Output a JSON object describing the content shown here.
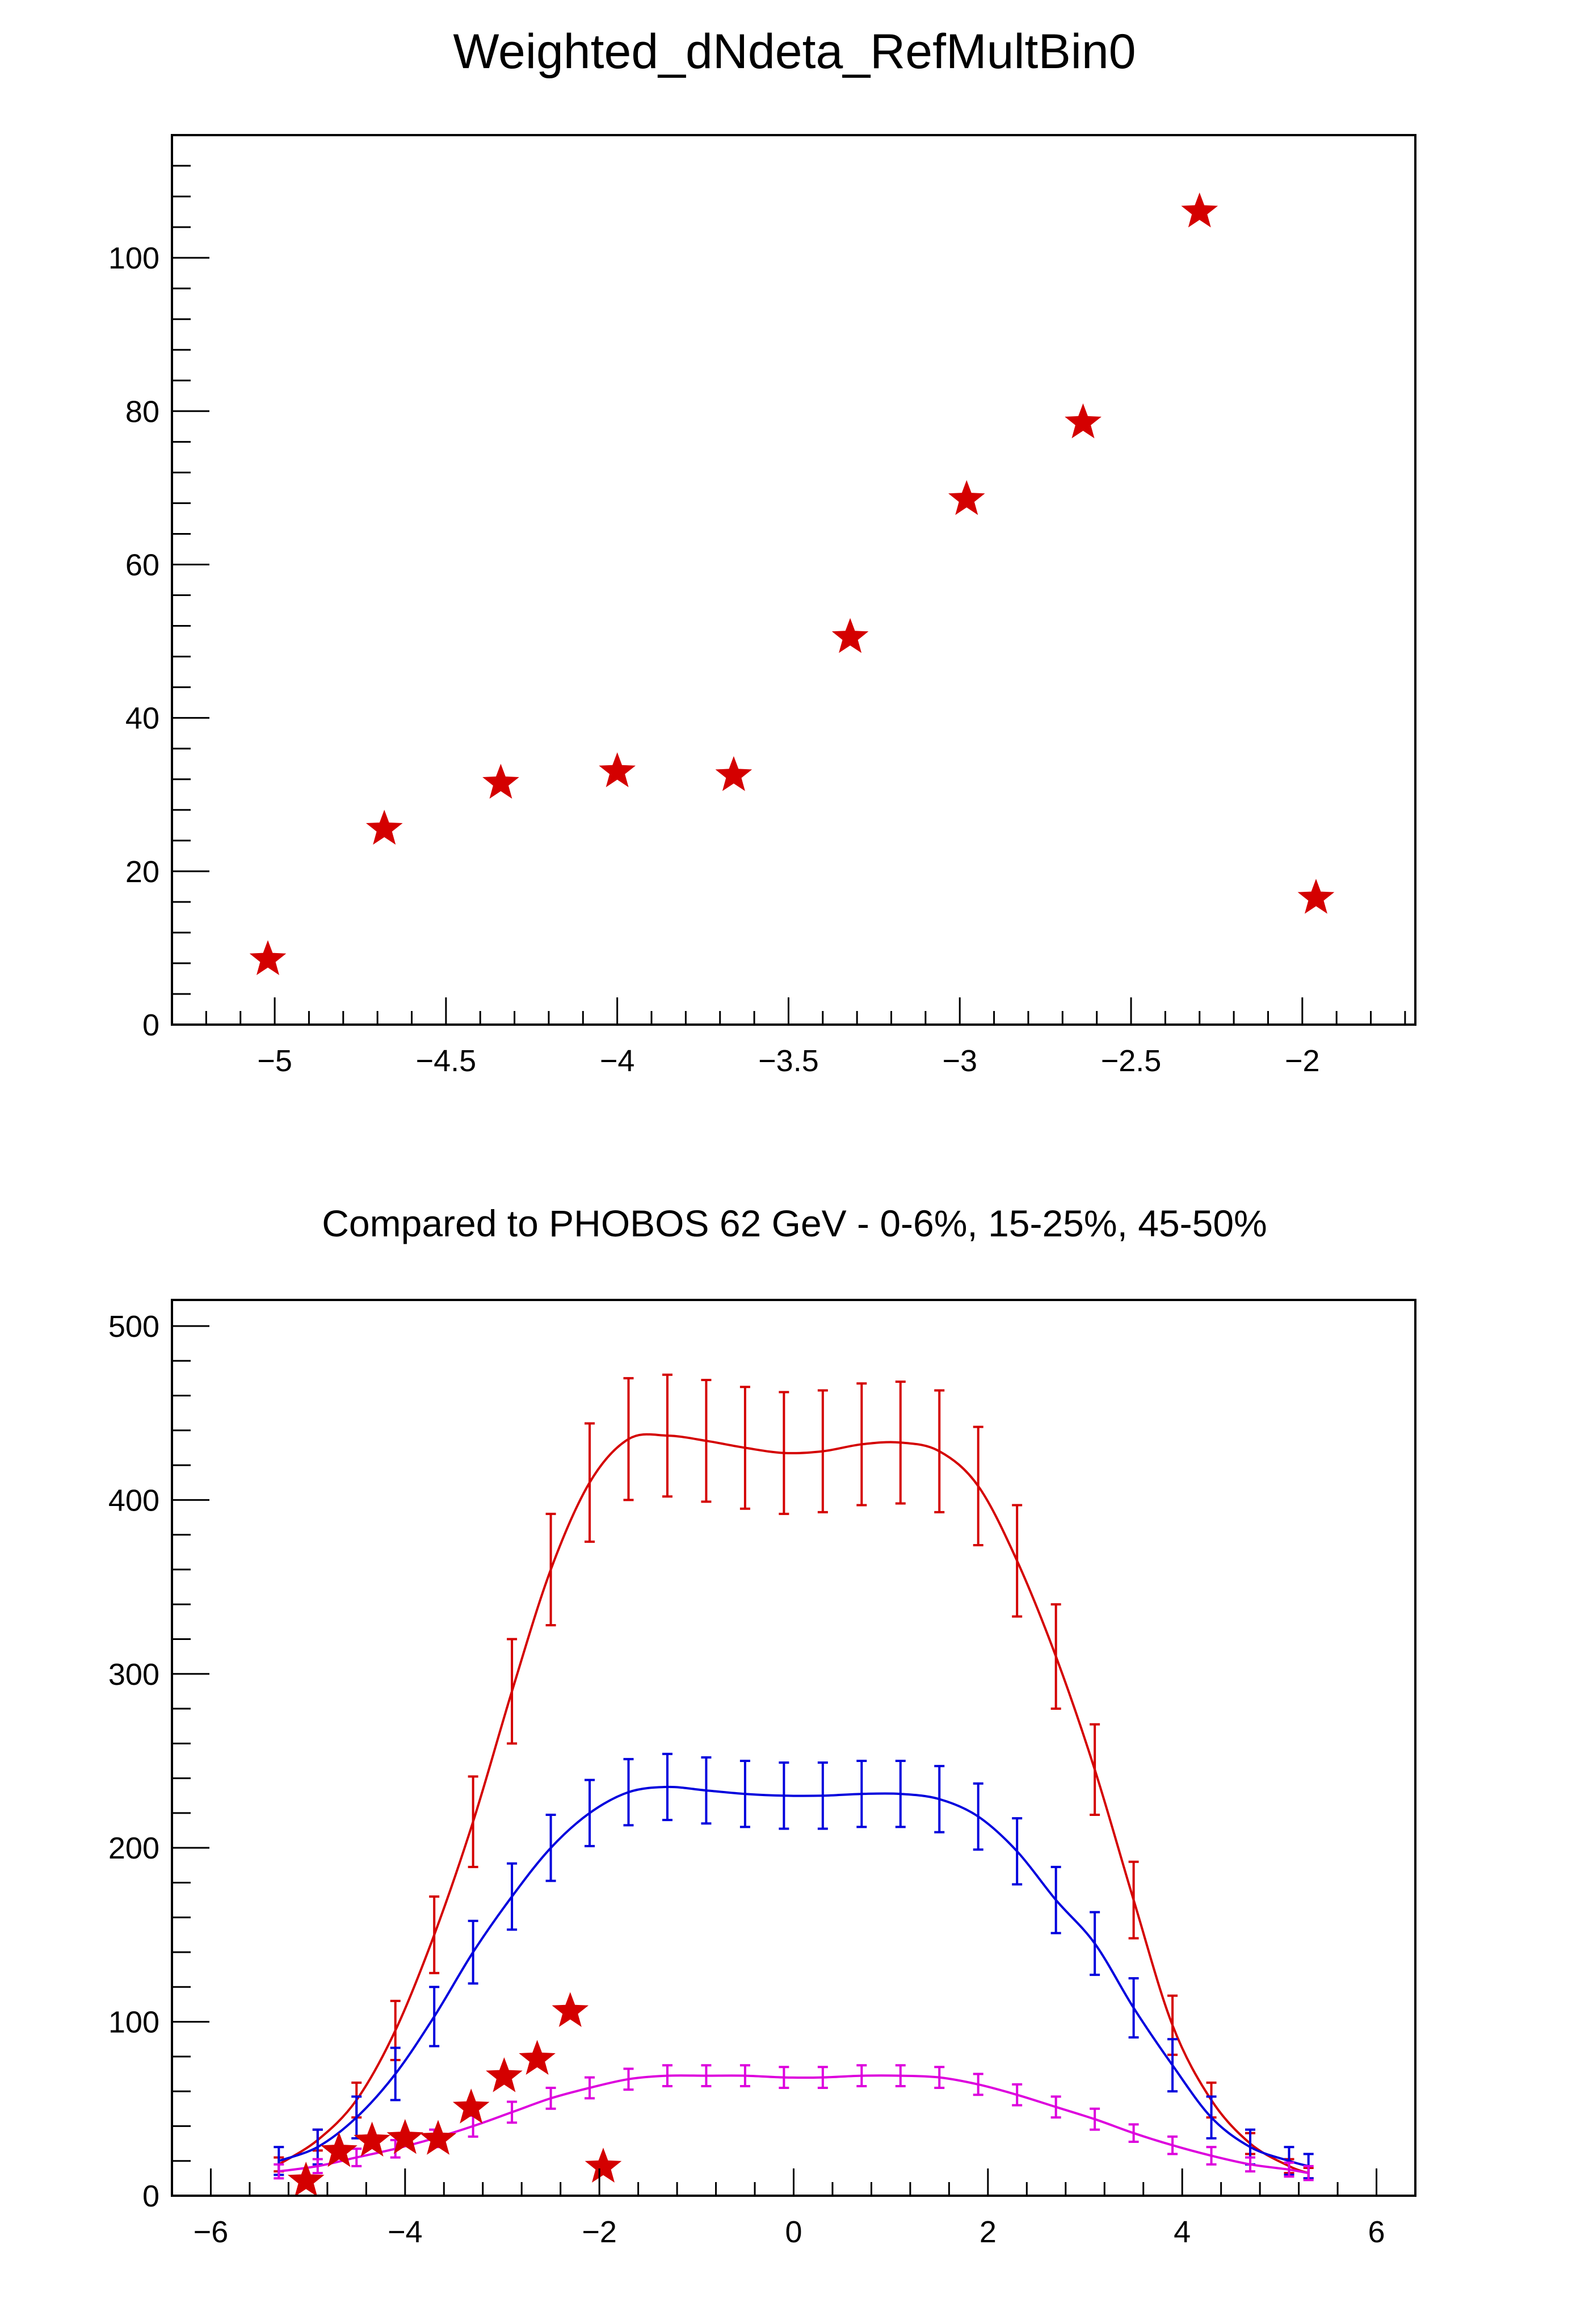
{
  "colors": {
    "stars": "#d40000",
    "phobos_0_6": "#d40000",
    "phobos_15_25": "#0000dd",
    "phobos_45_50": "#dd00dd",
    "axes": "#000000"
  },
  "chart_data": [
    {
      "type": "scatter",
      "title": "Weighted_dNdeta_RefMultBin0",
      "xlabel": "",
      "ylabel": "",
      "xlim": [
        -5.3,
        -1.67
      ],
      "ylim": [
        0,
        116
      ],
      "xticks": [
        -5,
        -4.5,
        -4,
        -3.5,
        -3,
        -2.5,
        -2
      ],
      "xtick_labels": [
        "−5",
        "−4.5",
        "−4",
        "−3.5",
        "−3",
        "−2.5",
        "−2"
      ],
      "yticks": [
        0,
        20,
        40,
        60,
        80,
        100
      ],
      "ytick_labels": [
        "0",
        "20",
        "40",
        "60",
        "80",
        "100"
      ],
      "marker": "star",
      "grid": false,
      "series": [
        {
          "x": [
            -5.02,
            -4.68,
            -4.34,
            -4.0,
            -3.66,
            -3.32,
            -2.98,
            -2.64,
            -2.3,
            -1.96
          ],
          "y": [
            8.5,
            25.5,
            31.5,
            33.0,
            32.5,
            50.5,
            68.5,
            78.5,
            106.0,
            16.5
          ]
        }
      ]
    },
    {
      "type": "line",
      "title": "Compared to PHOBOS 62 GeV - 0-6%, 15-25%, 45-50%",
      "xlabel": "",
      "ylabel": "",
      "xlim": [
        -6.4,
        6.4
      ],
      "ylim": [
        0,
        515
      ],
      "xticks": [
        -6,
        -4,
        -2,
        0,
        2,
        4,
        6
      ],
      "xtick_labels": [
        "−6",
        "−4",
        "−2",
        "0",
        "2",
        "4",
        "6"
      ],
      "yticks": [
        0,
        100,
        200,
        300,
        400,
        500
      ],
      "ytick_labels": [
        "0",
        "100",
        "200",
        "300",
        "400",
        "500"
      ],
      "grid": false,
      "series": [
        {
          "x": [
            -5.3,
            -4.9,
            -4.5,
            -4.1,
            -3.7,
            -3.3,
            -2.9,
            -2.5,
            -2.1,
            -1.7,
            -1.3,
            -0.9,
            -0.5,
            -0.1,
            0.3,
            0.7,
            1.1,
            1.5,
            1.9,
            2.3,
            2.7,
            3.1,
            3.5,
            3.9,
            4.3,
            4.7,
            5.1,
            5.3
          ],
          "y": [
            18,
            32,
            55,
            95,
            150,
            215,
            290,
            360,
            410,
            435,
            437,
            434,
            430,
            427,
            428,
            432,
            433,
            428,
            408,
            365,
            310,
            245,
            170,
            98,
            55,
            30,
            17,
            13
          ],
          "err": [
            4,
            6,
            10,
            17,
            22,
            26,
            30,
            32,
            34,
            35,
            35,
            35,
            35,
            35,
            35,
            35,
            35,
            35,
            34,
            32,
            30,
            26,
            22,
            17,
            10,
            6,
            4,
            3
          ]
        },
        {
          "x": [
            -5.3,
            -4.9,
            -4.5,
            -4.1,
            -3.7,
            -3.3,
            -2.9,
            -2.5,
            -2.1,
            -1.7,
            -1.3,
            -0.9,
            -0.5,
            -0.1,
            0.3,
            0.7,
            1.1,
            1.5,
            1.9,
            2.3,
            2.7,
            3.1,
            3.5,
            3.9,
            4.3,
            4.7,
            5.1,
            5.3
          ],
          "y": [
            20,
            28,
            45,
            70,
            103,
            140,
            172,
            200,
            220,
            232,
            235,
            233,
            231,
            230,
            230,
            231,
            231,
            228,
            218,
            198,
            170,
            145,
            108,
            75,
            45,
            28,
            20,
            17
          ],
          "err": [
            8,
            10,
            12,
            15,
            17,
            18,
            19,
            19,
            19,
            19,
            19,
            19,
            19,
            19,
            19,
            19,
            19,
            19,
            19,
            19,
            19,
            18,
            17,
            15,
            12,
            10,
            8,
            7
          ]
        },
        {
          "x": [
            -5.3,
            -4.9,
            -4.5,
            -4.1,
            -3.7,
            -3.3,
            -2.9,
            -2.5,
            -2.1,
            -1.7,
            -1.3,
            -0.9,
            -0.5,
            -0.1,
            0.3,
            0.7,
            1.1,
            1.5,
            1.9,
            2.3,
            2.7,
            3.1,
            3.5,
            3.9,
            4.3,
            4.7,
            5.1,
            5.3
          ],
          "y": [
            14,
            17,
            22,
            27,
            33,
            40,
            48,
            56,
            62,
            67,
            69,
            69,
            69,
            68,
            68,
            69,
            69,
            68,
            64,
            58,
            51,
            44,
            36,
            29,
            23,
            18,
            15,
            13
          ],
          "err": [
            4,
            4,
            5,
            5,
            5,
            6,
            6,
            6,
            6,
            6,
            6,
            6,
            6,
            6,
            6,
            6,
            6,
            6,
            6,
            6,
            6,
            6,
            5,
            5,
            5,
            4,
            4,
            4
          ]
        },
        {
          "marker": "star",
          "x": [
            -5.02,
            -4.68,
            -4.34,
            -4.0,
            -3.66,
            -3.32,
            -2.98,
            -2.64,
            -2.3,
            -1.96
          ],
          "y": [
            8.5,
            25.5,
            31.5,
            33.0,
            32.5,
            50.5,
            68.5,
            78.5,
            106.0,
            16.5
          ]
        }
      ]
    }
  ]
}
